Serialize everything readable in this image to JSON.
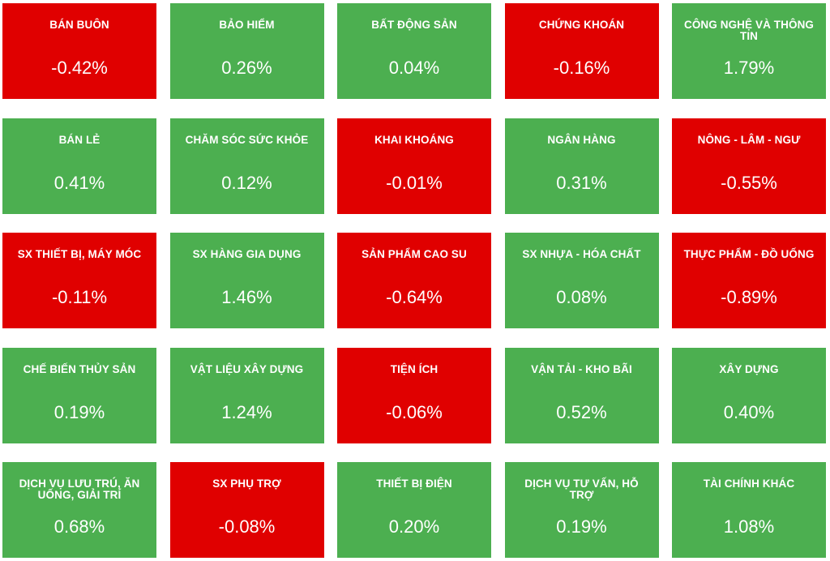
{
  "colors": {
    "up": "#4caf50",
    "down": "#e00000",
    "text": "#ffffff"
  },
  "sectors": [
    {
      "name": "BÁN BUÔN",
      "change": "-0.42%",
      "trend": "down"
    },
    {
      "name": "BẢO HIỂM",
      "change": "0.26%",
      "trend": "up"
    },
    {
      "name": "BẤT ĐỘNG SẢN",
      "change": "0.04%",
      "trend": "up"
    },
    {
      "name": "CHỨNG KHOÁN",
      "change": "-0.16%",
      "trend": "down"
    },
    {
      "name": "CÔNG NGHỆ VÀ THÔNG TIN",
      "change": "1.79%",
      "trend": "up"
    },
    {
      "name": "BÁN LẺ",
      "change": "0.41%",
      "trend": "up"
    },
    {
      "name": "CHĂM SÓC SỨC KHỎE",
      "change": "0.12%",
      "trend": "up"
    },
    {
      "name": "KHAI KHOÁNG",
      "change": "-0.01%",
      "trend": "down"
    },
    {
      "name": "NGÂN HÀNG",
      "change": "0.31%",
      "trend": "up"
    },
    {
      "name": "NÔNG - LÂM - NGƯ",
      "change": "-0.55%",
      "trend": "down"
    },
    {
      "name": "SX THIẾT BỊ, MÁY MÓC",
      "change": "-0.11%",
      "trend": "down"
    },
    {
      "name": "SX HÀNG GIA DỤNG",
      "change": "1.46%",
      "trend": "up"
    },
    {
      "name": "SẢN PHẨM CAO SU",
      "change": "-0.64%",
      "trend": "down"
    },
    {
      "name": "SX NHỰA - HÓA CHẤT",
      "change": "0.08%",
      "trend": "up"
    },
    {
      "name": "THỰC PHẨM - ĐỒ UỐNG",
      "change": "-0.89%",
      "trend": "down"
    },
    {
      "name": "CHẾ BIẾN THỦY SẢN",
      "change": "0.19%",
      "trend": "up"
    },
    {
      "name": "VẬT LIỆU XÂY DỰNG",
      "change": "1.24%",
      "trend": "up"
    },
    {
      "name": "TIỆN ÍCH",
      "change": "-0.06%",
      "trend": "down"
    },
    {
      "name": "VẬN TẢI - KHO BÃI",
      "change": "0.52%",
      "trend": "up"
    },
    {
      "name": "XÂY DỰNG",
      "change": "0.40%",
      "trend": "up"
    },
    {
      "name": "DỊCH VỤ LƯU TRÚ, ĂN UỐNG, GIẢI TRÍ",
      "change": "0.68%",
      "trend": "up"
    },
    {
      "name": "SX PHỤ TRỢ",
      "change": "-0.08%",
      "trend": "down"
    },
    {
      "name": "THIẾT BỊ ĐIỆN",
      "change": "0.20%",
      "trend": "up"
    },
    {
      "name": "DỊCH VỤ TƯ VẤN, HỖ TRỢ",
      "change": "0.19%",
      "trend": "up"
    },
    {
      "name": "TÀI CHÍNH KHÁC",
      "change": "1.08%",
      "trend": "up"
    }
  ]
}
